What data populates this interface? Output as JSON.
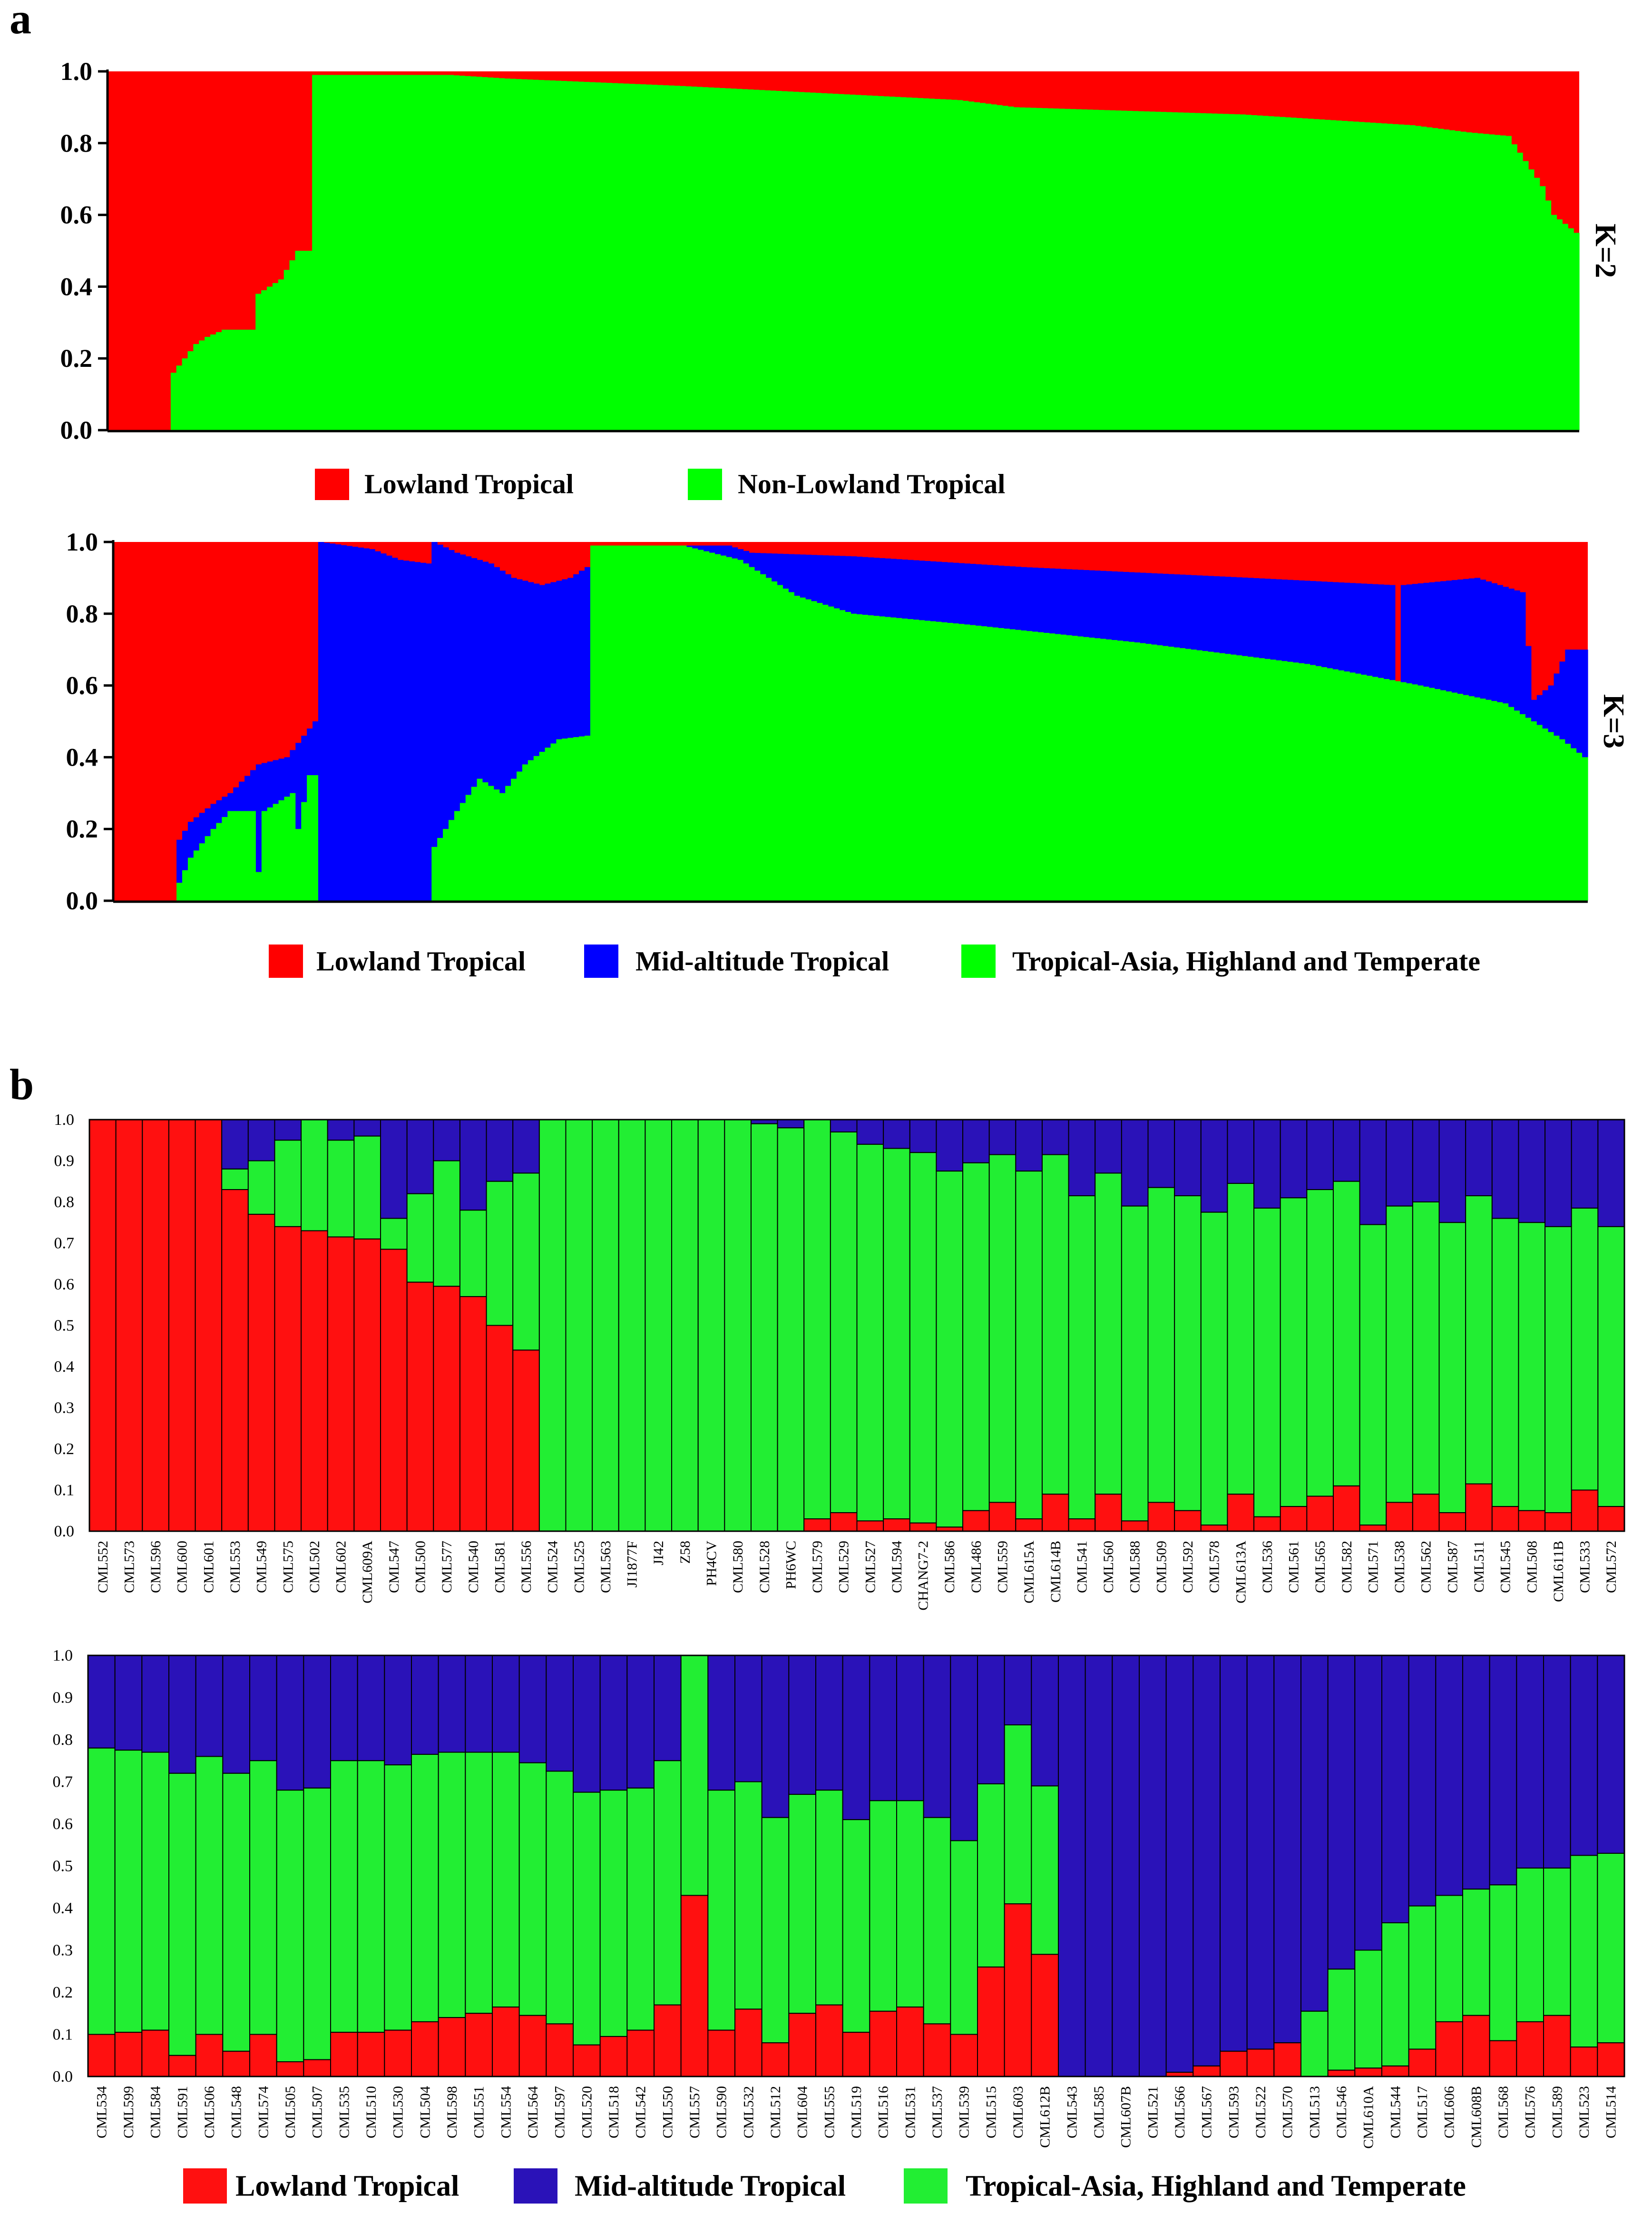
{
  "colors": {
    "red": "#ff0000",
    "green": "#00ff00",
    "blue": "#0000ff",
    "b_red": "#ff1010",
    "b_green": "#22ee33",
    "b_blue": "#2a12b8"
  },
  "panel_labels": {
    "a": "a",
    "b": "b"
  },
  "chart_data": [
    {
      "id": "a_k2",
      "type": "bar",
      "stacked": true,
      "side_label": "K=2",
      "ylim": [
        0,
        1
      ],
      "yticks": [
        "0.0",
        "0.2",
        "0.4",
        "0.6",
        "0.8",
        "1.0"
      ],
      "n_bars": 260,
      "series": [
        {
          "name": "Lowland Tropical",
          "color": "red"
        },
        {
          "name": "Non-Lowland Tropical",
          "color": "green"
        }
      ],
      "green_profile": [
        [
          0,
          0.0
        ],
        [
          10,
          0.0
        ],
        [
          11,
          0.16
        ],
        [
          13,
          0.2
        ],
        [
          15,
          0.24
        ],
        [
          17,
          0.26
        ],
        [
          20,
          0.28
        ],
        [
          25,
          0.28
        ],
        [
          26,
          0.38
        ],
        [
          30,
          0.42
        ],
        [
          33,
          0.5
        ],
        [
          35,
          0.5
        ],
        [
          36,
          0.99
        ],
        [
          60,
          0.99
        ],
        [
          70,
          0.98
        ],
        [
          100,
          0.96
        ],
        [
          150,
          0.92
        ],
        [
          160,
          0.9
        ],
        [
          200,
          0.88
        ],
        [
          230,
          0.85
        ],
        [
          240,
          0.83
        ],
        [
          247,
          0.82
        ],
        [
          250,
          0.75
        ],
        [
          253,
          0.68
        ],
        [
          255,
          0.6
        ],
        [
          259,
          0.55
        ]
      ]
    },
    {
      "id": "a_k3",
      "type": "bar",
      "stacked": true,
      "side_label": "K=3",
      "ylim": [
        0,
        1
      ],
      "yticks": [
        "0.0",
        "0.2",
        "0.4",
        "0.6",
        "0.8",
        "1.0"
      ],
      "n_bars": 260,
      "series": [
        {
          "name": "Lowland Tropical",
          "color": "red"
        },
        {
          "name": "Mid-altitude  Tropical",
          "color": "blue"
        },
        {
          "name": "Tropical-Asia, Highland and Temperate",
          "color": "green"
        }
      ],
      "green_profile": [
        [
          0,
          0.0
        ],
        [
          10,
          0.0
        ],
        [
          11,
          0.05
        ],
        [
          13,
          0.12
        ],
        [
          17,
          0.2
        ],
        [
          20,
          0.25
        ],
        [
          24,
          0.25
        ],
        [
          25,
          0.08
        ],
        [
          26,
          0.25
        ],
        [
          31,
          0.3
        ],
        [
          32,
          0.2
        ],
        [
          34,
          0.35
        ],
        [
          35,
          0.35
        ],
        [
          36,
          0.0
        ],
        [
          55,
          0.0
        ],
        [
          56,
          0.15
        ],
        [
          60,
          0.25
        ],
        [
          64,
          0.34
        ],
        [
          68,
          0.3
        ],
        [
          72,
          0.38
        ],
        [
          78,
          0.45
        ],
        [
          83,
          0.46
        ],
        [
          84,
          0.99
        ],
        [
          100,
          0.99
        ],
        [
          110,
          0.95
        ],
        [
          120,
          0.85
        ],
        [
          130,
          0.8
        ],
        [
          150,
          0.77
        ],
        [
          180,
          0.72
        ],
        [
          210,
          0.66
        ],
        [
          230,
          0.6
        ],
        [
          245,
          0.55
        ],
        [
          250,
          0.5
        ],
        [
          255,
          0.45
        ],
        [
          259,
          0.4
        ]
      ],
      "blue_top_profile": [
        [
          0,
          0.0
        ],
        [
          10,
          0.0
        ],
        [
          11,
          0.17
        ],
        [
          13,
          0.22
        ],
        [
          17,
          0.27
        ],
        [
          20,
          0.3
        ],
        [
          25,
          0.38
        ],
        [
          30,
          0.4
        ],
        [
          35,
          0.5
        ],
        [
          36,
          1.0
        ],
        [
          45,
          0.98
        ],
        [
          50,
          0.95
        ],
        [
          55,
          0.94
        ],
        [
          56,
          1.0
        ],
        [
          60,
          0.97
        ],
        [
          66,
          0.94
        ],
        [
          70,
          0.9
        ],
        [
          75,
          0.88
        ],
        [
          80,
          0.9
        ],
        [
          83,
          0.93
        ],
        [
          84,
          0.99
        ],
        [
          108,
          0.99
        ],
        [
          112,
          0.97
        ],
        [
          130,
          0.96
        ],
        [
          160,
          0.93
        ],
        [
          200,
          0.9
        ],
        [
          225,
          0.88
        ],
        [
          226,
          0.58
        ],
        [
          227,
          0.88
        ],
        [
          240,
          0.9
        ],
        [
          248,
          0.86
        ],
        [
          250,
          0.56
        ],
        [
          253,
          0.6
        ],
        [
          256,
          0.7
        ],
        [
          259,
          0.7
        ]
      ]
    },
    {
      "id": "b_top",
      "type": "bar",
      "stacked": true,
      "ylim": [
        0,
        1
      ],
      "yticks": [
        "0.0",
        "0.1",
        "0.2",
        "0.3",
        "0.4",
        "0.5",
        "0.6",
        "0.7",
        "0.8",
        "0.9",
        "1.0"
      ],
      "series": [
        {
          "name": "Lowland Tropical",
          "color": "b_red"
        },
        {
          "name": "Tropical-Asia, Highland and Temperate",
          "color": "b_green"
        },
        {
          "name": "Mid-altitude  Tropical",
          "color": "b_blue"
        }
      ],
      "categories": [
        "CML552",
        "CML573",
        "CML596",
        "CML600",
        "CML601",
        "CML553",
        "CML549",
        "CML575",
        "CML502",
        "CML602",
        "CML609A",
        "CML547",
        "CML500",
        "CML577",
        "CML540",
        "CML581",
        "CML556",
        "CML524",
        "CML525",
        "CML563",
        "JI1877F",
        "JI42",
        "Z58",
        "PH4CV",
        "CML580",
        "CML528",
        "PH6WC",
        "CML579",
        "CML529",
        "CML527",
        "CML594",
        "CHANG7-2",
        "CML586",
        "CML486",
        "CML559",
        "CML615A",
        "CML614B",
        "CML541",
        "CML560",
        "CML588",
        "CML509",
        "CML592",
        "CML578",
        "CML613A",
        "CML536",
        "CML561",
        "CML565",
        "CML582",
        "CML571",
        "CML538",
        "CML562",
        "CML587",
        "CML511",
        "CML545",
        "CML508",
        "CML611B",
        "CML533",
        "CML572"
      ],
      "red": [
        1,
        1,
        1,
        1,
        1,
        0.83,
        0.77,
        0.74,
        0.73,
        0.715,
        0.71,
        0.685,
        0.605,
        0.595,
        0.57,
        0.5,
        0.44,
        0,
        0,
        0,
        0,
        0,
        0,
        0,
        0,
        0,
        0,
        0.03,
        0.045,
        0.025,
        0.03,
        0.02,
        0.01,
        0.05,
        0.07,
        0.03,
        0.09,
        0.03,
        0.09,
        0.025,
        0.07,
        0.05,
        0.015,
        0.09,
        0.035,
        0.06,
        0.085,
        0.11,
        0.015,
        0.07,
        0.09,
        0.045,
        0.115,
        0.06,
        0.05,
        0.045,
        0.1,
        0.06
      ],
      "green": [
        0,
        0,
        0,
        0,
        0,
        0.05,
        0.13,
        0.21,
        0.27,
        0.235,
        0.25,
        0.075,
        0.215,
        0.305,
        0.21,
        0.35,
        0.43,
        1,
        1,
        1,
        1,
        1,
        1,
        1,
        1,
        0.99,
        0.98,
        0.97,
        0.925,
        0.915,
        0.9,
        0.9,
        0.865,
        0.845,
        0.845,
        0.845,
        0.825,
        0.785,
        0.78,
        0.765,
        0.765,
        0.765,
        0.76,
        0.755,
        0.75,
        0.75,
        0.745,
        0.74,
        0.73,
        0.72,
        0.71,
        0.705,
        0.7,
        0.7,
        0.7,
        0.695,
        0.685,
        0.68
      ]
    },
    {
      "id": "b_bottom",
      "type": "bar",
      "stacked": true,
      "ylim": [
        0,
        1
      ],
      "yticks": [
        "0.0",
        "0.1",
        "0.2",
        "0.3",
        "0.4",
        "0.5",
        "0.6",
        "0.7",
        "0.8",
        "0.9",
        "1.0"
      ],
      "series": [
        {
          "name": "Lowland Tropical",
          "color": "b_red"
        },
        {
          "name": "Tropical-Asia, Highland and Temperate",
          "color": "b_green"
        },
        {
          "name": "Mid-altitude  Tropical",
          "color": "b_blue"
        }
      ],
      "categories": [
        "CML534",
        "CML599",
        "CML584",
        "CML591",
        "CML506",
        "CML548",
        "CML574",
        "CML505",
        "CML507",
        "CML535",
        "CML510",
        "CML530",
        "CML504",
        "CML598",
        "CML551",
        "CML554",
        "CML564",
        "CML597",
        "CML520",
        "CML518",
        "CML542",
        "CML550",
        "CML557",
        "CML590",
        "CML532",
        "CML512",
        "CML604",
        "CML555",
        "CML519",
        "CML516",
        "CML531",
        "CML537",
        "CML539",
        "CML515",
        "CML603",
        "CML612B",
        "CML543",
        "CML585",
        "CML607B",
        "CML521",
        "CML566",
        "CML567",
        "CML593",
        "CML522",
        "CML570",
        "CML513",
        "CML546",
        "CML610A",
        "CML544",
        "CML517",
        "CML606",
        "CML608B",
        "CML568",
        "CML576",
        "CML589",
        "CML523",
        "CML514"
      ],
      "red": [
        0.1,
        0.105,
        0.11,
        0.05,
        0.1,
        0.06,
        0.1,
        0.035,
        0.04,
        0.105,
        0.105,
        0.11,
        0.13,
        0.14,
        0.15,
        0.165,
        0.145,
        0.125,
        0.075,
        0.095,
        0.11,
        0.17,
        0.43,
        0.11,
        0.16,
        0.08,
        0.15,
        0.17,
        0.105,
        0.155,
        0.165,
        0.125,
        0.1,
        0.26,
        0.41,
        0.29,
        0,
        0,
        0,
        0,
        0.01,
        0.025,
        0.06,
        0.065,
        0.08,
        0,
        0.015,
        0.02,
        0.025,
        0.065,
        0.13,
        0.145,
        0.085,
        0.13,
        0.145,
        0.07,
        0.08
      ],
      "green": [
        0.68,
        0.67,
        0.66,
        0.67,
        0.66,
        0.66,
        0.65,
        0.645,
        0.645,
        0.645,
        0.645,
        0.63,
        0.635,
        0.63,
        0.62,
        0.605,
        0.6,
        0.6,
        0.6,
        0.585,
        0.575,
        0.58,
        0.57,
        0.57,
        0.54,
        0.535,
        0.52,
        0.51,
        0.505,
        0.5,
        0.49,
        0.49,
        0.46,
        0.435,
        0.425,
        0.4,
        0,
        0,
        0,
        0,
        0,
        0,
        0,
        0,
        0,
        0.155,
        0.24,
        0.28,
        0.34,
        0.34,
        0.3,
        0.3,
        0.37,
        0.365,
        0.35,
        0.455,
        0.45
      ]
    }
  ],
  "legends": {
    "a_k2": [
      {
        "label": "Lowland Tropical",
        "color": "red"
      },
      {
        "label": "Non-Lowland Tropical",
        "color": "green"
      }
    ],
    "a_k3": [
      {
        "label": "Lowland Tropical",
        "color": "red"
      },
      {
        "label": "Mid-altitude  Tropical",
        "color": "blue"
      },
      {
        "label": "Tropical-Asia, Highland and Temperate",
        "color": "green"
      }
    ],
    "b": [
      {
        "label": "Lowland Tropical",
        "color": "b_red"
      },
      {
        "label": "Mid-altitude  Tropical",
        "color": "b_blue"
      },
      {
        "label": "Tropical-Asia, Highland and Temperate",
        "color": "b_green"
      }
    ]
  }
}
